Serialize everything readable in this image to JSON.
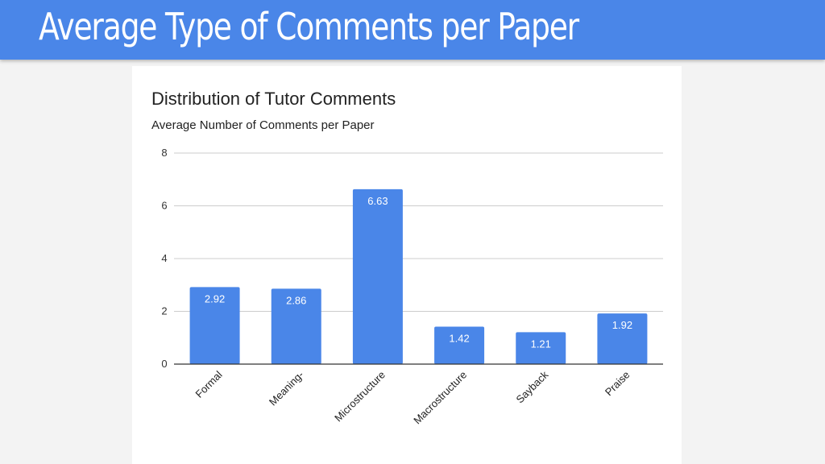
{
  "slide": {
    "title": "Average Type of Comments per Paper"
  },
  "colors": {
    "header": "#4a86e8",
    "bar": "#4a86e8",
    "grid": "#cccccc",
    "axis": "#333333"
  },
  "chart_data": {
    "type": "bar",
    "title": "Distribution of Tutor Comments",
    "subtitle": "Average Number of Comments per Paper",
    "xlabel": "",
    "ylabel": "",
    "categories": [
      "Formal",
      "Meaning-",
      "Microstructure",
      "Macrostructure",
      "Sayback",
      "Praise"
    ],
    "values": [
      2.92,
      2.86,
      6.63,
      1.42,
      1.21,
      1.92
    ],
    "value_labels": [
      "2.92",
      "2.86",
      "6.63",
      "1.42",
      "1.21",
      "1.92"
    ],
    "ylim": [
      0,
      8
    ],
    "yticks": [
      0,
      2,
      4,
      6,
      8
    ],
    "ytick_labels": [
      "0",
      "2",
      "4",
      "6",
      "8"
    ],
    "grid": true,
    "legend": "none"
  }
}
